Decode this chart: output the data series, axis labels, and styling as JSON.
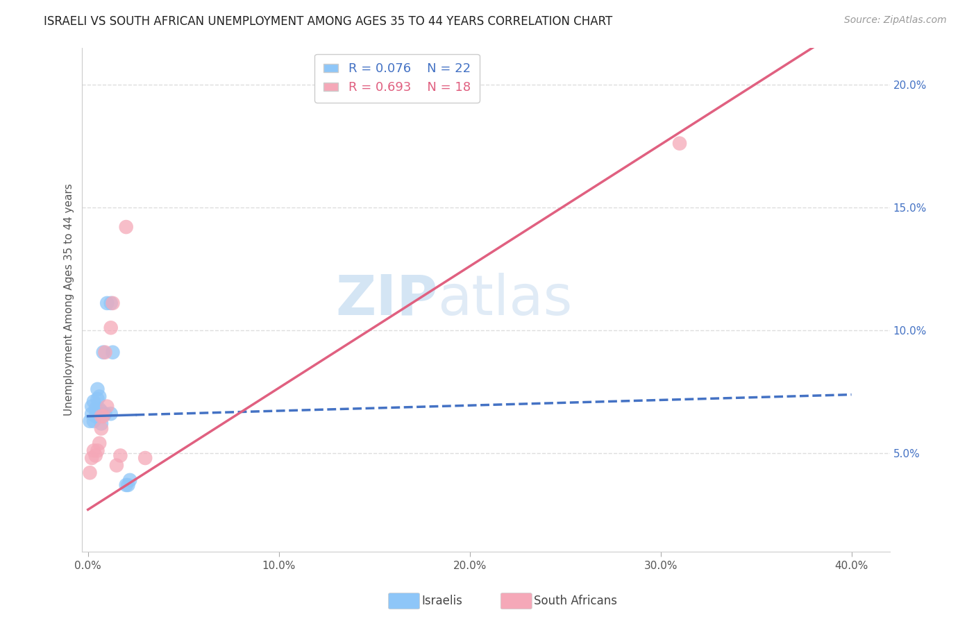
{
  "title": "ISRAELI VS SOUTH AFRICAN UNEMPLOYMENT AMONG AGES 35 TO 44 YEARS CORRELATION CHART",
  "source": "Source: ZipAtlas.com",
  "ylabel": "Unemployment Among Ages 35 to 44 years",
  "xlabel_ticks": [
    "0.0%",
    "10.0%",
    "20.0%",
    "30.0%",
    "40.0%"
  ],
  "xlabel_vals": [
    0.0,
    0.1,
    0.2,
    0.3,
    0.4
  ],
  "ylabel_ticks": [
    "5.0%",
    "10.0%",
    "15.0%",
    "20.0%"
  ],
  "ylabel_vals": [
    0.05,
    0.1,
    0.15,
    0.2
  ],
  "xlim": [
    -0.003,
    0.42
  ],
  "ylim": [
    0.01,
    0.215
  ],
  "israelis_x": [
    0.001,
    0.002,
    0.002,
    0.003,
    0.003,
    0.004,
    0.004,
    0.005,
    0.005,
    0.006,
    0.006,
    0.007,
    0.007,
    0.008,
    0.009,
    0.01,
    0.012,
    0.012,
    0.013,
    0.02,
    0.021,
    0.022
  ],
  "israelis_y": [
    0.063,
    0.066,
    0.069,
    0.063,
    0.071,
    0.065,
    0.068,
    0.072,
    0.076,
    0.068,
    0.073,
    0.062,
    0.067,
    0.091,
    0.066,
    0.111,
    0.111,
    0.066,
    0.091,
    0.037,
    0.037,
    0.039
  ],
  "south_africans_x": [
    0.001,
    0.002,
    0.003,
    0.004,
    0.005,
    0.006,
    0.007,
    0.007,
    0.008,
    0.009,
    0.01,
    0.012,
    0.013,
    0.015,
    0.017,
    0.02,
    0.03,
    0.31
  ],
  "south_africans_y": [
    0.042,
    0.048,
    0.051,
    0.049,
    0.051,
    0.054,
    0.06,
    0.065,
    0.065,
    0.091,
    0.069,
    0.101,
    0.111,
    0.045,
    0.049,
    0.142,
    0.048,
    0.176
  ],
  "israeli_color": "#8EC6F8",
  "south_african_color": "#F5A8B8",
  "israeli_line_color": "#4472C4",
  "south_african_line_color": "#E06080",
  "israeli_R": 0.076,
  "israeli_N": 22,
  "south_african_R": 0.693,
  "south_african_N": 18,
  "watermark_zip": "ZIP",
  "watermark_atlas": "atlas",
  "background_color": "#FFFFFF",
  "grid_color": "#DDDDDD",
  "israeli_line_intercept": 0.065,
  "israeli_line_slope": 0.022,
  "south_african_line_intercept": 0.027,
  "south_african_line_slope": 0.495
}
